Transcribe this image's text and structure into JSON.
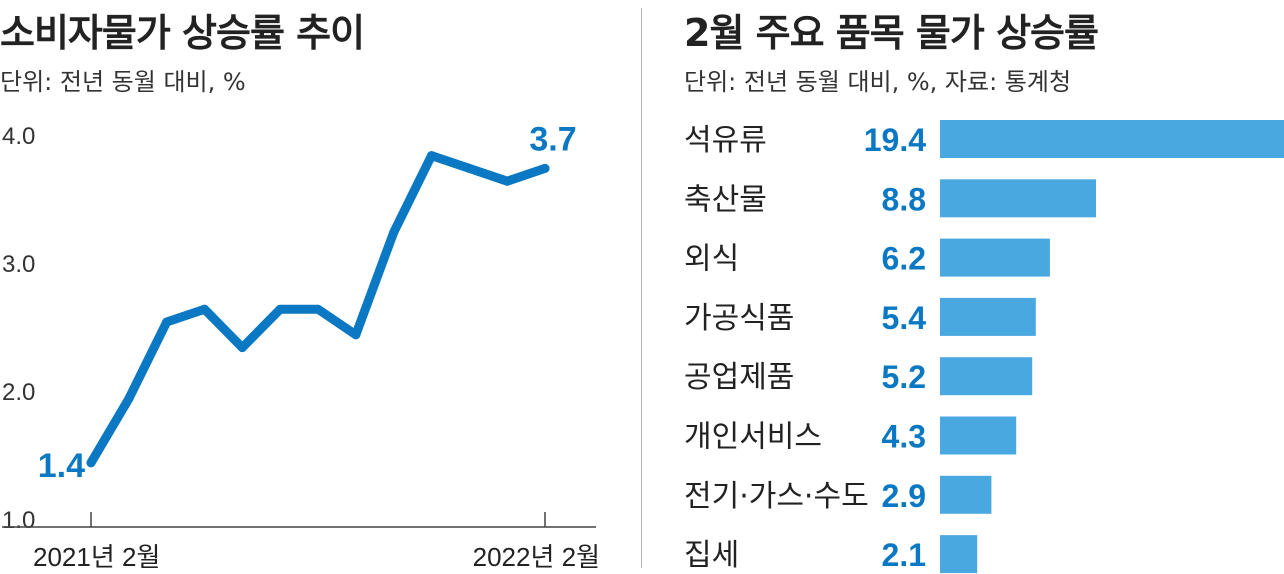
{
  "colors": {
    "line": "#0a78c2",
    "bar": "#4aa8e0",
    "value_text": "#0a78c2"
  },
  "left_panel": {
    "title": "소비자물가 상승률 추이",
    "subtitle": "단위: 전년 동월 대비, %"
  },
  "right_panel": {
    "title": "2월 주요 품목 물가 상승률",
    "subtitle": "단위: 전년 동월 대비, %, 자료: 통계청"
  },
  "chart_data": [
    {
      "type": "line",
      "title": "소비자물가 상승률 추이",
      "ylim": [
        1.0,
        4.0
      ],
      "yticks": [
        "4.0",
        "3.0",
        "2.0",
        "1.0"
      ],
      "x_labels": [
        "2021년 2월",
        "2022년 2월"
      ],
      "x": [
        "2021-02",
        "2021-03",
        "2021-04",
        "2021-05",
        "2021-06",
        "2021-07",
        "2021-08",
        "2021-09",
        "2021-10",
        "2021-11",
        "2021-12",
        "2022-01",
        "2022-02"
      ],
      "values": [
        1.4,
        1.9,
        2.5,
        2.6,
        2.3,
        2.6,
        2.6,
        2.4,
        3.2,
        3.8,
        3.7,
        3.6,
        3.7
      ],
      "labels": [
        {
          "index": 0,
          "text": "1.4"
        },
        {
          "index": 12,
          "text": "3.7"
        }
      ]
    },
    {
      "type": "bar",
      "title": "2월 주요 품목 물가 상승률",
      "orientation": "horizontal",
      "categories": [
        "석유류",
        "축산물",
        "외식",
        "가공식품",
        "공업제품",
        "개인서비스",
        "전기·가스·수도",
        "집세"
      ],
      "values": [
        19.4,
        8.8,
        6.2,
        5.4,
        5.2,
        4.3,
        2.9,
        2.1
      ],
      "value_labels": [
        "19.4",
        "8.8",
        "6.2",
        "5.4",
        "5.2",
        "4.3",
        "2.9",
        "2.1"
      ]
    }
  ]
}
